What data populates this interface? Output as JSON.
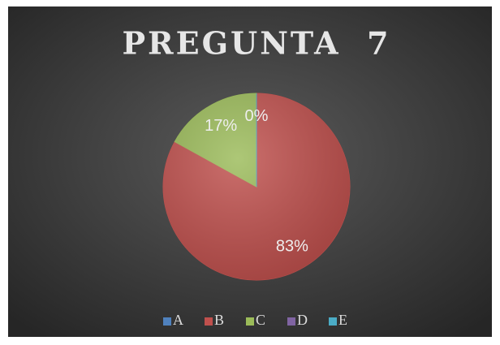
{
  "chart_data": {
    "type": "pie",
    "title": "PREGUNTA  7",
    "categories": [
      "A",
      "B",
      "C",
      "D",
      "E"
    ],
    "values": [
      0,
      83,
      17,
      0,
      0
    ],
    "value_labels": [
      "0%",
      "83%",
      "17%",
      null,
      null
    ],
    "colors": [
      "#4f81bd",
      "#c0504d",
      "#9bbb59",
      "#8064a2",
      "#4bacc6"
    ],
    "legend": "bottom"
  }
}
